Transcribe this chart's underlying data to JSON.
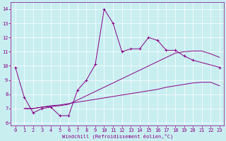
{
  "xlabel": "Windchill (Refroidissement éolien,°C)",
  "background_color": "#c8eef0",
  "line_color": "#880088",
  "xlim": [
    -0.5,
    23.5
  ],
  "ylim": [
    5.8,
    14.5
  ],
  "yticks": [
    6,
    7,
    8,
    9,
    10,
    11,
    12,
    13,
    14
  ],
  "xticks": [
    0,
    1,
    2,
    3,
    4,
    5,
    6,
    7,
    8,
    9,
    10,
    11,
    12,
    13,
    14,
    15,
    16,
    17,
    18,
    19,
    20,
    21,
    22,
    23
  ],
  "line1_x": [
    0,
    1,
    2,
    3,
    4,
    5,
    6,
    7,
    8,
    9,
    10,
    11,
    12,
    13,
    14,
    15,
    16,
    17,
    18,
    19,
    20,
    23
  ],
  "line1_y": [
    9.9,
    7.8,
    6.7,
    7.0,
    7.1,
    6.5,
    6.5,
    8.3,
    9.0,
    10.1,
    14.0,
    13.0,
    11.0,
    11.2,
    11.2,
    12.0,
    11.8,
    11.1,
    11.1,
    10.7,
    10.4,
    9.9
  ],
  "line2_x": [
    1,
    2,
    3,
    4,
    5,
    6,
    7,
    8,
    9,
    10,
    11,
    12,
    13,
    14,
    15,
    16,
    17,
    18,
    19,
    20,
    21,
    22,
    23
  ],
  "line2_y": [
    7.0,
    7.0,
    7.1,
    7.2,
    7.25,
    7.35,
    7.45,
    7.55,
    7.65,
    7.75,
    7.85,
    7.95,
    8.05,
    8.15,
    8.25,
    8.35,
    8.5,
    8.6,
    8.7,
    8.8,
    8.85,
    8.85,
    8.6
  ],
  "line3_x": [
    1,
    2,
    3,
    4,
    5,
    6,
    7,
    8,
    9,
    10,
    11,
    12,
    13,
    14,
    15,
    16,
    17,
    18,
    19,
    20,
    21,
    22,
    23
  ],
  "line3_y": [
    7.0,
    7.0,
    7.1,
    7.15,
    7.2,
    7.3,
    7.6,
    7.9,
    8.2,
    8.5,
    8.8,
    9.1,
    9.4,
    9.7,
    10.0,
    10.3,
    10.6,
    10.9,
    11.0,
    11.05,
    11.05,
    10.85,
    10.6
  ],
  "xlabel_fontsize": 5,
  "tick_fontsize": 5
}
